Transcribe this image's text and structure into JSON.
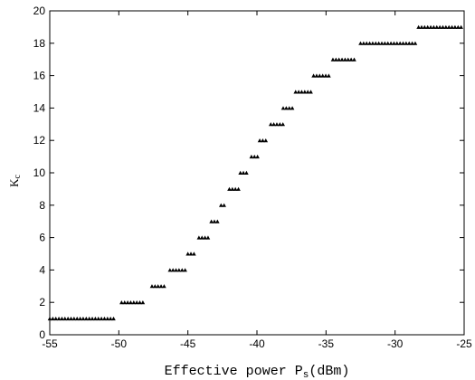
{
  "chart_data": {
    "type": "scatter",
    "title": "",
    "xlabel": "Effective power P",
    "xlabel_sub": "s",
    "xlabel_unit": "(dBm)",
    "ylabel": "K",
    "ylabel_sub": "c",
    "xlim": [
      -55,
      -25
    ],
    "ylim": [
      0,
      20
    ],
    "xticks": [
      -55,
      -50,
      -45,
      -40,
      -35,
      -30,
      -25
    ],
    "yticks": [
      0,
      2,
      4,
      6,
      8,
      10,
      12,
      14,
      16,
      18,
      20
    ],
    "grid": false,
    "marker_color": "#000000",
    "steps": [
      {
        "x_start": -55.0,
        "x_end": -50.3,
        "y": 1
      },
      {
        "x_start": -49.8,
        "x_end": -48.2,
        "y": 2
      },
      {
        "x_start": -47.6,
        "x_end": -46.6,
        "y": 3
      },
      {
        "x_start": -46.3,
        "x_end": -45.2,
        "y": 4
      },
      {
        "x_start": -45.0,
        "x_end": -44.5,
        "y": 5
      },
      {
        "x_start": -44.2,
        "x_end": -43.4,
        "y": 6
      },
      {
        "x_start": -43.3,
        "x_end": -42.8,
        "y": 7
      },
      {
        "x_start": -42.6,
        "x_end": -42.2,
        "y": 8
      },
      {
        "x_start": -42.0,
        "x_end": -41.2,
        "y": 9
      },
      {
        "x_start": -41.2,
        "x_end": -40.6,
        "y": 10
      },
      {
        "x_start": -40.4,
        "x_end": -39.9,
        "y": 11
      },
      {
        "x_start": -39.8,
        "x_end": -39.2,
        "y": 12
      },
      {
        "x_start": -39.0,
        "x_end": -38.1,
        "y": 13
      },
      {
        "x_start": -38.1,
        "x_end": -37.3,
        "y": 14
      },
      {
        "x_start": -37.2,
        "x_end": -36.1,
        "y": 15
      },
      {
        "x_start": -35.9,
        "x_end": -34.7,
        "y": 16
      },
      {
        "x_start": -34.5,
        "x_end": -32.8,
        "y": 17
      },
      {
        "x_start": -32.5,
        "x_end": -28.5,
        "y": 18
      },
      {
        "x_start": -28.3,
        "x_end": -25.2,
        "y": 19
      }
    ]
  }
}
